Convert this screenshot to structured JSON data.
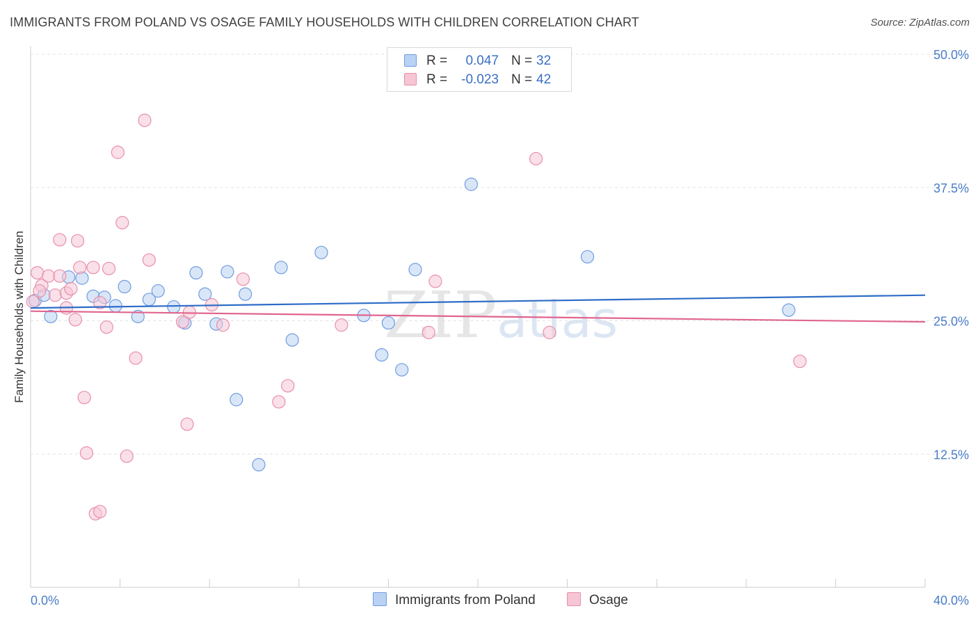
{
  "chart_data": {
    "type": "scatter",
    "title": "IMMIGRANTS FROM POLAND VS OSAGE FAMILY HOUSEHOLDS WITH CHILDREN CORRELATION CHART",
    "source": "Source: ZipAtlas.com",
    "xlabel": "",
    "ylabel": "Family Households with Children",
    "xlim": [
      0,
      40
    ],
    "ylim": [
      0,
      50
    ],
    "x_tick_labels": [
      "0.0%",
      "40.0%"
    ],
    "y_ticks": [
      12.5,
      25.0,
      37.5,
      50.0
    ],
    "y_tick_labels": [
      "12.5%",
      "25.0%",
      "37.5%",
      "50.0%"
    ],
    "watermark": {
      "zip": "ZIP",
      "atlas": "atlas"
    },
    "legend": [
      {
        "r_label": "R =",
        "r_value": "0.047",
        "n_label": "N =",
        "n_value": "32"
      },
      {
        "r_label": "R =",
        "r_value": "-0.023",
        "n_label": "N =",
        "n_value": "42"
      }
    ],
    "series": [
      {
        "name": "Immigrants from Poland",
        "color": "#6f9de0",
        "fill": "#b9d1f3",
        "trend": [
          [
            0,
            26.2
          ],
          [
            40,
            27.4
          ]
        ],
        "points": [
          [
            0.2,
            26.9
          ],
          [
            0.6,
            27.4
          ],
          [
            0.9,
            25.4
          ],
          [
            1.7,
            29.1
          ],
          [
            2.3,
            29.0
          ],
          [
            2.8,
            27.3
          ],
          [
            3.3,
            27.2
          ],
          [
            3.8,
            26.4
          ],
          [
            4.2,
            28.2
          ],
          [
            4.8,
            25.4
          ],
          [
            5.3,
            27.0
          ],
          [
            5.7,
            27.8
          ],
          [
            6.4,
            26.3
          ],
          [
            6.9,
            24.8
          ],
          [
            7.4,
            29.5
          ],
          [
            7.8,
            27.5
          ],
          [
            8.3,
            24.7
          ],
          [
            8.8,
            29.6
          ],
          [
            9.2,
            17.6
          ],
          [
            9.6,
            27.5
          ],
          [
            10.2,
            11.5
          ],
          [
            11.2,
            30.0
          ],
          [
            11.7,
            23.2
          ],
          [
            13.0,
            31.4
          ],
          [
            14.9,
            25.5
          ],
          [
            15.7,
            21.8
          ],
          [
            16.0,
            24.8
          ],
          [
            16.6,
            20.4
          ],
          [
            17.2,
            29.8
          ],
          [
            19.7,
            37.8
          ],
          [
            24.9,
            31.0
          ],
          [
            33.9,
            26.0
          ]
        ]
      },
      {
        "name": "Osage",
        "color": "#e88fab",
        "fill": "#f6c6d5",
        "trend": [
          [
            0,
            25.9
          ],
          [
            40,
            24.9
          ]
        ],
        "points": [
          [
            0.1,
            26.8
          ],
          [
            0.3,
            29.5
          ],
          [
            0.5,
            28.3
          ],
          [
            0.8,
            29.2
          ],
          [
            1.1,
            27.4
          ],
          [
            1.3,
            29.2
          ],
          [
            1.3,
            32.6
          ],
          [
            1.6,
            26.2
          ],
          [
            1.6,
            27.6
          ],
          [
            1.8,
            28.0
          ],
          [
            2.0,
            25.1
          ],
          [
            2.1,
            32.5
          ],
          [
            2.2,
            30.0
          ],
          [
            2.4,
            17.8
          ],
          [
            2.5,
            12.6
          ],
          [
            2.8,
            30.0
          ],
          [
            2.9,
            6.9
          ],
          [
            3.1,
            7.1
          ],
          [
            3.1,
            26.7
          ],
          [
            3.4,
            24.4
          ],
          [
            3.5,
            29.9
          ],
          [
            3.9,
            40.8
          ],
          [
            4.1,
            34.2
          ],
          [
            4.3,
            12.3
          ],
          [
            4.7,
            21.5
          ],
          [
            5.1,
            43.8
          ],
          [
            5.3,
            30.7
          ],
          [
            6.8,
            24.9
          ],
          [
            7.0,
            15.3
          ],
          [
            7.1,
            25.8
          ],
          [
            8.1,
            26.5
          ],
          [
            8.6,
            24.6
          ],
          [
            9.5,
            28.9
          ],
          [
            11.1,
            17.4
          ],
          [
            11.5,
            18.9
          ],
          [
            13.9,
            24.6
          ],
          [
            17.8,
            23.9
          ],
          [
            18.1,
            28.7
          ],
          [
            22.6,
            40.2
          ],
          [
            23.2,
            23.9
          ],
          [
            34.4,
            21.2
          ],
          [
            0.4,
            27.8
          ]
        ]
      }
    ]
  }
}
